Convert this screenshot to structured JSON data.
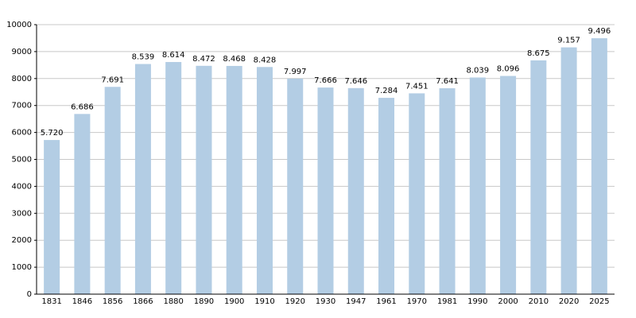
{
  "chart_data": {
    "type": "bar",
    "categories": [
      "1831",
      "1846",
      "1856",
      "1866",
      "1880",
      "1890",
      "1900",
      "1910",
      "1920",
      "1930",
      "1947",
      "1961",
      "1970",
      "1981",
      "1990",
      "2000",
      "2010",
      "2020",
      "2025"
    ],
    "values": [
      5720,
      6686,
      7691,
      8539,
      8614,
      8472,
      8468,
      8428,
      7997,
      7666,
      7646,
      7284,
      7451,
      7641,
      8039,
      8096,
      8675,
      9157,
      9496
    ],
    "value_labels": [
      "5.720",
      "6.686",
      "7.691",
      "8.539",
      "8.614",
      "8.472",
      "8.468",
      "8.428",
      "7.997",
      "7.666",
      "7.646",
      "7.284",
      "7.451",
      "7.641",
      "8.039",
      "8.096",
      "8.675",
      "9.157",
      "9.496"
    ],
    "color": "#b3cde4",
    "ylim": [
      0,
      10000
    ],
    "yticks": [
      0,
      1000,
      2000,
      3000,
      4000,
      5000,
      6000,
      7000,
      8000,
      9000,
      10000
    ],
    "grid": true
  }
}
